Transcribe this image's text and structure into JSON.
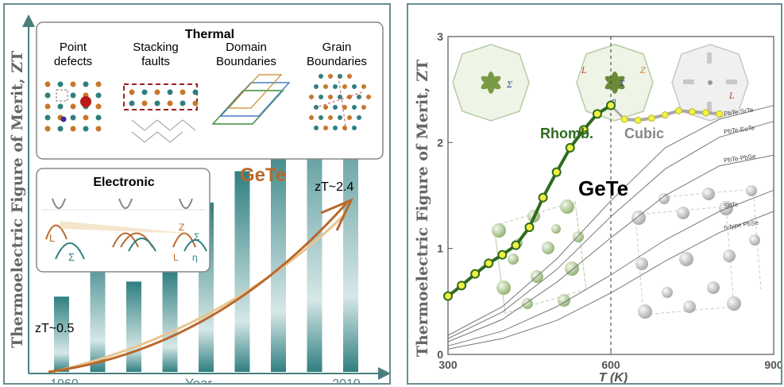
{
  "left": {
    "ylabel": "Thermoelectric Figure of Merit, ZT",
    "xlabel": "Year",
    "thermal_title": "Thermal",
    "thermal_items": [
      [
        "Point",
        "defects"
      ],
      [
        "Stacking",
        "faults"
      ],
      [
        "Domain",
        "Boundaries"
      ],
      [
        "Grain",
        "Boundaries"
      ]
    ],
    "electronic_title": "Electronic",
    "band_labels": {
      "L": "L",
      "sigma": "Σ",
      "z": "Z",
      "eta": "η"
    },
    "material": "GeTe",
    "zt_start": "zT~0.5",
    "zt_end": "zT~2.4"
  },
  "right": {
    "ylabel": "Thermoelectric Figure of Merit, ZT",
    "xlabel": "T (K)",
    "material": "GeTe",
    "phase_rhomb": "Rhomb.",
    "phase_cubic": "Cubic",
    "band_labels": {
      "sigma": "Σ",
      "L": "L",
      "z": "Z",
      "eta": "η"
    }
  },
  "chart_data": [
    {
      "type": "bar",
      "xlabel": "Year",
      "ylabel": "Thermoelectric Figure of Merit, ZT",
      "x_tick_labels": [
        "1960",
        "2019"
      ],
      "categories": [
        "1960",
        "",
        "",
        "",
        "",
        "",
        "",
        "",
        "2019"
      ],
      "values": [
        0.6,
        1.0,
        0.72,
        0.8,
        1.35,
        1.6,
        1.9,
        2.3,
        2.4
      ],
      "annotations": [
        "zT~0.5",
        "zT~2.4",
        "GeTe"
      ],
      "ylim": [
        0,
        2.8
      ]
    },
    {
      "type": "line",
      "xlabel": "T (K)",
      "ylabel": "Thermoelectric Figure of Merit, ZT",
      "xlim": [
        300,
        900
      ],
      "ylim": [
        0,
        3.0
      ],
      "x_ticks": [
        300,
        600,
        900
      ],
      "y_ticks": [
        0,
        1,
        2,
        3
      ],
      "vline": 600,
      "annotations": [
        "Rhomb.",
        "Cubic",
        "GeTe"
      ],
      "series": [
        {
          "name": "GeTe",
          "color": "#2e6b1e",
          "x": [
            300,
            325,
            350,
            375,
            400,
            425,
            450,
            475,
            500,
            525,
            550,
            575,
            600
          ],
          "y": [
            0.55,
            0.65,
            0.76,
            0.86,
            0.94,
            1.03,
            1.2,
            1.48,
            1.72,
            1.95,
            2.12,
            2.27,
            2.35
          ]
        },
        {
          "color": "#d0d040",
          "x": [
            625,
            650,
            675,
            700,
            725,
            750,
            775,
            800
          ],
          "y": [
            2.22,
            2.21,
            2.23,
            2.26,
            2.3,
            2.29,
            2.28,
            2.27
          ]
        },
        {
          "name": "PbTe-SrTe",
          "color": "#777777",
          "x": [
            300,
            400,
            500,
            600,
            700,
            800,
            900
          ],
          "y": [
            0.18,
            0.45,
            0.9,
            1.45,
            1.95,
            2.22,
            2.35
          ]
        },
        {
          "name": "PbTe-EuTe",
          "color": "#777777",
          "x": [
            300,
            400,
            500,
            600,
            700,
            800,
            900
          ],
          "y": [
            0.15,
            0.4,
            0.8,
            1.3,
            1.75,
            2.05,
            2.2
          ]
        },
        {
          "name": "PbTe-PbSe",
          "color": "#777777",
          "x": [
            300,
            400,
            500,
            600,
            700,
            800,
            900
          ],
          "y": [
            0.12,
            0.33,
            0.68,
            1.1,
            1.5,
            1.78,
            1.88
          ]
        },
        {
          "name": "SnTe",
          "color": "#777777",
          "x": [
            300,
            400,
            500,
            600,
            700,
            800,
            900
          ],
          "y": [
            0.08,
            0.22,
            0.45,
            0.75,
            1.08,
            1.35,
            1.55
          ]
        },
        {
          "name": "n-type PbSe",
          "color": "#777777",
          "x": [
            300,
            400,
            500,
            600,
            700,
            800,
            900
          ],
          "y": [
            0.05,
            0.15,
            0.32,
            0.58,
            0.88,
            1.15,
            1.35
          ]
        }
      ]
    }
  ]
}
